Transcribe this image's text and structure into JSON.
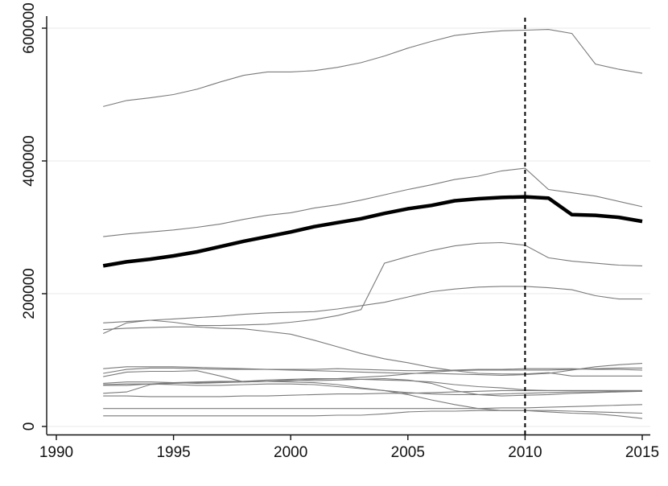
{
  "chart_data": {
    "type": "line",
    "title": "",
    "xlabel": "",
    "ylabel": "",
    "xlim": [
      1990,
      2015
    ],
    "ylim": [
      0,
      600000
    ],
    "x_ticks": [
      1990,
      1995,
      2000,
      2005,
      2010,
      2015
    ],
    "x_tick_labels": [
      "1990",
      "1995",
      "2000",
      "2005",
      "2010",
      "2015"
    ],
    "y_ticks": [
      0,
      200000,
      400000,
      600000
    ],
    "y_tick_labels": [
      "0",
      "200000",
      "400000",
      "600000"
    ],
    "grid": "horizontal",
    "legend": "none",
    "reference_line": {
      "x": 2010,
      "style": "dashed"
    },
    "x": [
      1992,
      1993,
      1994,
      1995,
      1996,
      1997,
      1998,
      1999,
      2000,
      2001,
      2002,
      2003,
      2004,
      2005,
      2006,
      2007,
      2008,
      2009,
      2010,
      2011,
      2012,
      2013,
      2014,
      2015
    ],
    "highlight": {
      "values": [
        242000,
        248000,
        252000,
        257000,
        263000,
        271000,
        279000,
        286000,
        293000,
        301000,
        307000,
        313000,
        321000,
        328000,
        333000,
        340000,
        343000,
        345000,
        346000,
        344000,
        319000,
        318000,
        315000,
        309000
      ],
      "color": "#000000"
    },
    "series": [
      {
        "values": [
          482000,
          491000,
          495000,
          500000,
          508000,
          519000,
          529000,
          534000,
          534000,
          536000,
          541000,
          548000,
          558000,
          570000,
          580000,
          589000,
          593000,
          596000,
          597000,
          598000,
          592000,
          546000,
          538000,
          532000
        ]
      },
      {
        "values": [
          286000,
          290000,
          293000,
          296000,
          300000,
          305000,
          312000,
          318000,
          322000,
          329000,
          334000,
          341000,
          349000,
          357000,
          364000,
          372000,
          377000,
          385000,
          389000,
          357000,
          352000,
          347000,
          339000,
          331000
        ]
      },
      {
        "values": [
          140000,
          156000,
          160000,
          157000,
          152000,
          152000,
          153000,
          154000,
          157000,
          161000,
          167000,
          176000,
          246000,
          256000,
          265000,
          272000,
          276000,
          277000,
          273000,
          254000,
          249000,
          246000,
          243000,
          242000
        ]
      },
      {
        "values": [
          156000,
          158000,
          160000,
          162000,
          164000,
          166000,
          169000,
          171000,
          172000,
          173000,
          177000,
          182000,
          187000,
          195000,
          203000,
          207000,
          210000,
          211000,
          211000,
          209000,
          206000,
          197000,
          192000,
          192000
        ]
      },
      {
        "values": [
          146000,
          148000,
          149000,
          150000,
          150000,
          148000,
          147000,
          143000,
          139000,
          130000,
          120000,
          110000,
          102000,
          96000,
          89000,
          84000,
          80000,
          79000,
          79000,
          81000,
          76000,
          76000,
          76000,
          76000
        ]
      },
      {
        "values": [
          87000,
          90000,
          90000,
          90000,
          89000,
          88000,
          87000,
          86000,
          86000,
          86000,
          87000,
          86000,
          85000,
          84000,
          84000,
          85000,
          86000,
          86000,
          87000,
          87000,
          87000,
          86000,
          86000,
          85000
        ]
      },
      {
        "values": [
          80000,
          86000,
          88000,
          88000,
          87000,
          86000,
          86000,
          86000,
          85000,
          84000,
          83000,
          82000,
          81000,
          80000,
          80000,
          79000,
          78000,
          77000,
          78000,
          80000,
          85000,
          90000,
          93000,
          95000
        ]
      },
      {
        "values": [
          75000,
          82000,
          83000,
          83000,
          84000,
          76000,
          67000,
          68000,
          70000,
          69000,
          70000,
          71000,
          72000,
          70000,
          65000,
          54000,
          48000,
          46000,
          47000,
          48000,
          50000,
          51000,
          52000,
          53000
        ]
      },
      {
        "values": [
          65000,
          67000,
          67000,
          66000,
          65000,
          66000,
          67000,
          68000,
          69000,
          71000,
          72000,
          74000,
          76000,
          79000,
          82000,
          84000,
          85000,
          85000,
          85000,
          85000,
          86000,
          87000,
          88000,
          88000
        ]
      },
      {
        "values": [
          63000,
          64000,
          64000,
          63000,
          62000,
          62000,
          63000,
          64000,
          64000,
          63000,
          60000,
          57000,
          54000,
          51000,
          49000,
          48000,
          48000,
          49000,
          50000,
          51000,
          52000,
          52000,
          53000,
          53000
        ]
      },
      {
        "values": [
          50000,
          52000,
          63000,
          65000,
          66000,
          67000,
          68000,
          70000,
          71000,
          72000,
          72000,
          71000,
          70000,
          69000,
          67000,
          63000,
          60000,
          58000,
          55000,
          54000,
          54000,
          54000,
          54000,
          54000
        ]
      },
      {
        "values": [
          46000,
          46000,
          45000,
          45000,
          45000,
          45000,
          46000,
          46000,
          47000,
          48000,
          49000,
          49000,
          50000,
          50000,
          51000,
          52000,
          53000,
          54000,
          54000,
          54000,
          54000,
          54000,
          54000,
          54000
        ]
      },
      {
        "values": [
          62000,
          62000,
          64000,
          66000,
          67000,
          68000,
          68000,
          68000,
          67000,
          66000,
          63000,
          58000,
          54000,
          48000,
          40000,
          33000,
          27000,
          24000,
          24000,
          24000,
          23000,
          22000,
          21000,
          20000
        ]
      },
      {
        "values": [
          27000,
          27000,
          27000,
          27000,
          27000,
          27000,
          27000,
          27000,
          27000,
          27000,
          27000,
          27000,
          27000,
          27000,
          27000,
          27000,
          27000,
          28000,
          28000,
          29000,
          30000,
          31000,
          32000,
          33000
        ]
      },
      {
        "values": [
          16000,
          16000,
          16000,
          16000,
          16000,
          16000,
          16000,
          16000,
          16000,
          16000,
          17000,
          17000,
          19000,
          22000,
          23000,
          23000,
          24000,
          24000,
          24000,
          22000,
          20000,
          19000,
          16000,
          12000
        ]
      }
    ]
  }
}
